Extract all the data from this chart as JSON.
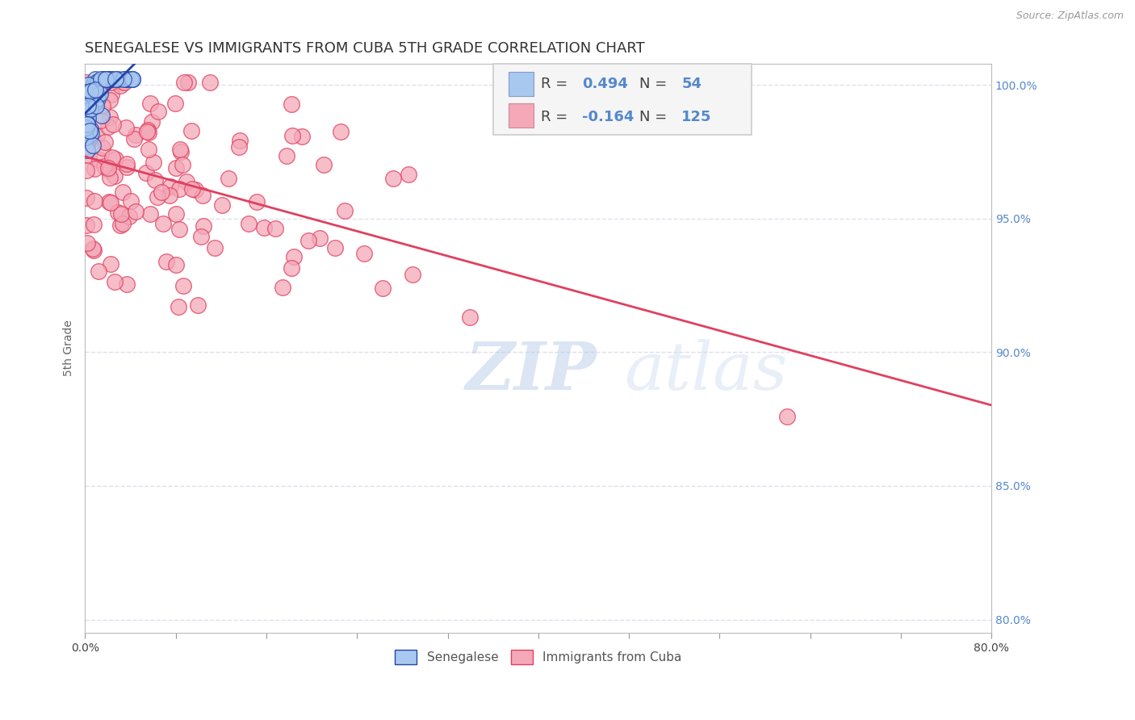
{
  "title": "SENEGALESE VS IMMIGRANTS FROM CUBA 5TH GRADE CORRELATION CHART",
  "source_text": "Source: ZipAtlas.com",
  "ylabel": "5th Grade",
  "xlabel": "",
  "x_min": 0.0,
  "x_max": 0.8,
  "y_min": 0.795,
  "y_max": 1.008,
  "y_ticks": [
    0.8,
    0.85,
    0.9,
    0.95,
    1.0
  ],
  "y_tick_labels": [
    "80.0%",
    "85.0%",
    "90.0%",
    "95.0%",
    "100.0%"
  ],
  "x_ticks": [
    0.0,
    0.08,
    0.16,
    0.24,
    0.32,
    0.4,
    0.48,
    0.56,
    0.64,
    0.72,
    0.8
  ],
  "x_tick_labels": [
    "0.0%",
    "",
    "",
    "",
    "",
    "",
    "",
    "",
    "",
    "",
    "80.0%"
  ],
  "blue_R": 0.494,
  "blue_N": 54,
  "pink_R": -0.164,
  "pink_N": 125,
  "blue_color": "#a8c8f0",
  "pink_color": "#f4a8b8",
  "blue_line_color": "#2244aa",
  "pink_line_color": "#e04060",
  "legend_label_blue": "Senegalese",
  "legend_label_pink": "Immigrants from Cuba",
  "watermark_text": "ZIPatlas",
  "background_color": "#ffffff",
  "grid_color": "#e0e0ec",
  "title_fontsize": 13,
  "axis_label_fontsize": 10,
  "tick_fontsize": 10,
  "legend_fontsize": 13,
  "right_axis_color": "#5588cc"
}
